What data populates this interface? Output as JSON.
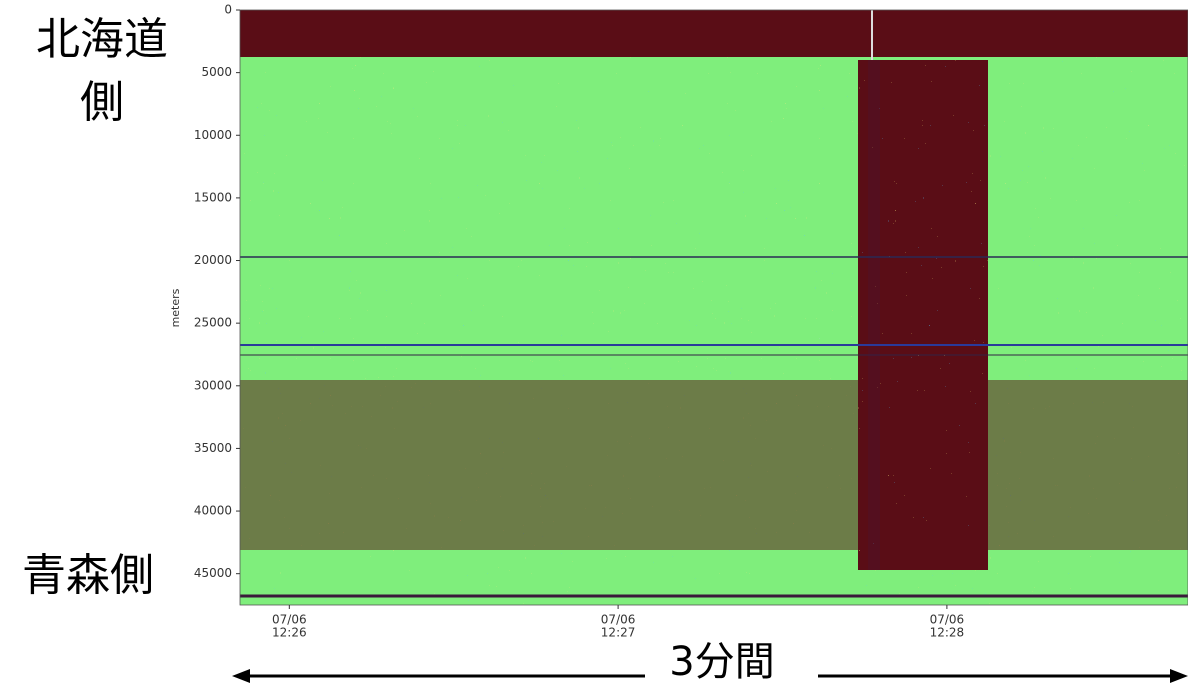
{
  "chart_data": {
    "type": "heatmap",
    "ylabel": "meters",
    "ylim": [
      0,
      47500
    ],
    "yticks": [
      0,
      5000,
      10000,
      15000,
      20000,
      25000,
      30000,
      35000,
      40000,
      45000
    ],
    "xlim": [
      "12:25:51",
      "12:28:44"
    ],
    "xticks": [
      {
        "date": "07/06",
        "time": "12:26"
      },
      {
        "date": "07/06",
        "time": "12:27"
      },
      {
        "date": "07/06",
        "time": "12:28"
      }
    ],
    "annotations": {
      "top_side": [
        "北海道",
        "側"
      ],
      "bottom_side": "青森側",
      "duration": "3分間"
    }
  }
}
